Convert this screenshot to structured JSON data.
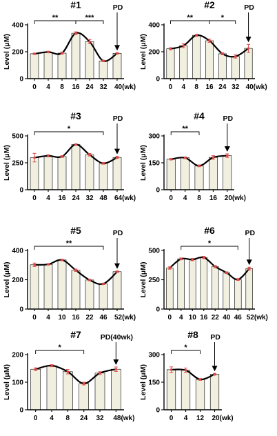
{
  "y_axis_label": "Level (μM)",
  "chart_data": [
    {
      "type": "bar",
      "title": "#1",
      "categories": [
        "0",
        "4",
        "8",
        "16",
        "24",
        "32",
        "40(wk)"
      ],
      "values": [
        185,
        198,
        190,
        338,
        275,
        132,
        188
      ],
      "errors": [
        5,
        6,
        8,
        10,
        15,
        5,
        5
      ],
      "ylim": [
        0,
        400
      ],
      "yticks": [
        "0",
        "200",
        "400"
      ],
      "annotations": [
        {
          "text": "**",
          "from": 0,
          "to": 3
        },
        {
          "text": "***",
          "from": 3,
          "to": 5
        }
      ],
      "pd_label": "PD",
      "pd_index": 6
    },
    {
      "type": "bar",
      "title": "#2",
      "categories": [
        "0",
        "4",
        "8",
        "16",
        "24",
        "32",
        "40(wk)"
      ],
      "values": [
        222,
        245,
        322,
        282,
        185,
        165,
        225
      ],
      "errors": [
        8,
        15,
        8,
        12,
        8,
        12,
        30
      ],
      "ylim": [
        0,
        400
      ],
      "yticks": [
        "0",
        "200",
        "400"
      ],
      "annotations": [
        {
          "text": "**",
          "from": 0,
          "to": 3
        },
        {
          "text": "*",
          "from": 3,
          "to": 5
        }
      ],
      "pd_label": "PD",
      "pd_index": 6
    },
    {
      "type": "bar",
      "title": "#3",
      "categories": [
        "0",
        "4",
        "16",
        "24",
        "32",
        "48",
        "64(wk)"
      ],
      "values": [
        298,
        315,
        308,
        420,
        325,
        245,
        300
      ],
      "errors": [
        40,
        10,
        8,
        5,
        12,
        8,
        10
      ],
      "ylim": [
        0,
        500
      ],
      "yticks": [
        "0",
        "250",
        "500"
      ],
      "annotations": [
        {
          "text": "*",
          "from": 0,
          "to": 5
        }
      ],
      "pd_label": "PD",
      "pd_index": 6
    },
    {
      "type": "bar",
      "title": "#4",
      "categories": [
        "0",
        "4",
        "8",
        "16",
        "20(wk)"
      ],
      "values": [
        170,
        178,
        133,
        180,
        190
      ],
      "errors": [
        4,
        5,
        5,
        10,
        10
      ],
      "ylim": [
        0,
        300
      ],
      "yticks": [
        "0",
        "150",
        "300"
      ],
      "annotations": [
        {
          "text": "**",
          "from": 0,
          "to": 2
        }
      ],
      "pd_label": "PD",
      "pd_index": 4
    },
    {
      "type": "bar",
      "title": "#5",
      "categories": [
        "0",
        "4",
        "10",
        "16",
        "22",
        "46",
        "52(wk)"
      ],
      "values": [
        302,
        305,
        335,
        265,
        198,
        172,
        255
      ],
      "errors": [
        12,
        5,
        5,
        8,
        5,
        5,
        5
      ],
      "ylim": [
        0,
        400
      ],
      "yticks": [
        "0",
        "200",
        "400"
      ],
      "annotations": [
        {
          "text": "**",
          "from": 0,
          "to": 5
        }
      ],
      "pd_label": "PD",
      "pd_index": 6
    },
    {
      "type": "bar",
      "title": "#6",
      "categories": [
        "0",
        "4",
        "10",
        "16",
        "22",
        "40",
        "46",
        "52(wk)"
      ],
      "values": [
        350,
        428,
        422,
        440,
        362,
        310,
        252,
        345
      ],
      "errors": [
        10,
        8,
        10,
        10,
        10,
        8,
        8,
        12
      ],
      "ylim": [
        0,
        500
      ],
      "yticks": [
        "0",
        "250",
        "500"
      ],
      "annotations": [
        {
          "text": "*",
          "from": 1,
          "to": 6
        }
      ],
      "pd_label": "PD",
      "pd_index": 7
    },
    {
      "type": "bar",
      "title": "#7",
      "categories": [
        "0",
        "4",
        "8",
        "24",
        "32",
        "48(wk)"
      ],
      "values": [
        147,
        160,
        138,
        95,
        133,
        147
      ],
      "errors": [
        5,
        4,
        8,
        5,
        5,
        8
      ],
      "ylim": [
        0,
        200
      ],
      "yticks": [
        "0",
        "100",
        "200"
      ],
      "annotations": [
        {
          "text": "*",
          "from": 0,
          "to": 3
        }
      ],
      "pd_label": "PD(40wk)",
      "pd_index": 5
    },
    {
      "type": "bar",
      "title": "#8",
      "categories": [
        "0",
        "4",
        "12",
        "20(wk)"
      ],
      "values": [
        218,
        215,
        165,
        193
      ],
      "errors": [
        15,
        12,
        5,
        5
      ],
      "ylim": [
        0,
        300
      ],
      "yticks": [
        "0",
        "150",
        "300"
      ],
      "annotations": [
        {
          "text": "*",
          "from": 0,
          "to": 2
        }
      ],
      "pd_label": "PD",
      "pd_index": 3
    }
  ]
}
